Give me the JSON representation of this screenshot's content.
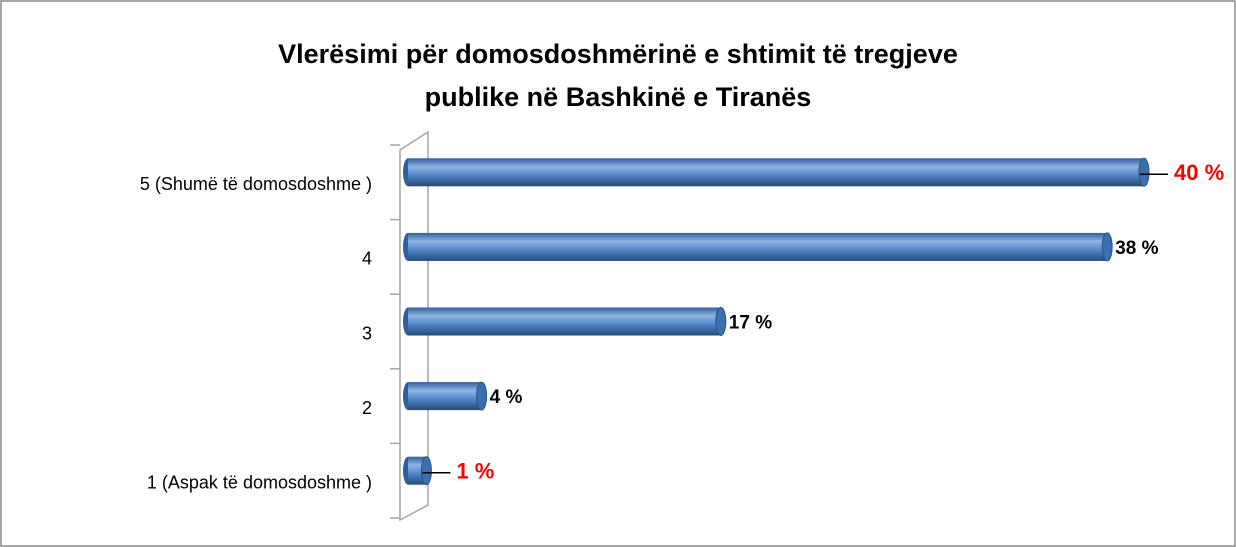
{
  "chart_data": {
    "type": "barh",
    "title": [
      "Vlerësimi për domosdoshmërinë e shtimit të tregjeve",
      "publike  në Bashkinë e Tiranës"
    ],
    "categories": [
      "5  (Shumë të domosdoshme )",
      "4",
      "3",
      "2",
      "1 (Aspak të domosdoshme )"
    ],
    "values": [
      40,
      38,
      17,
      4,
      1
    ],
    "value_labels": [
      "40 %",
      "38 %",
      "17 %",
      "4 %",
      "1 %"
    ],
    "value_label_colors": [
      "#ff0000",
      "#000000",
      "#000000",
      "#000000",
      "#ff0000"
    ],
    "leader_lines": [
      true,
      false,
      false,
      false,
      true
    ],
    "color": "#4a7ebb"
  }
}
